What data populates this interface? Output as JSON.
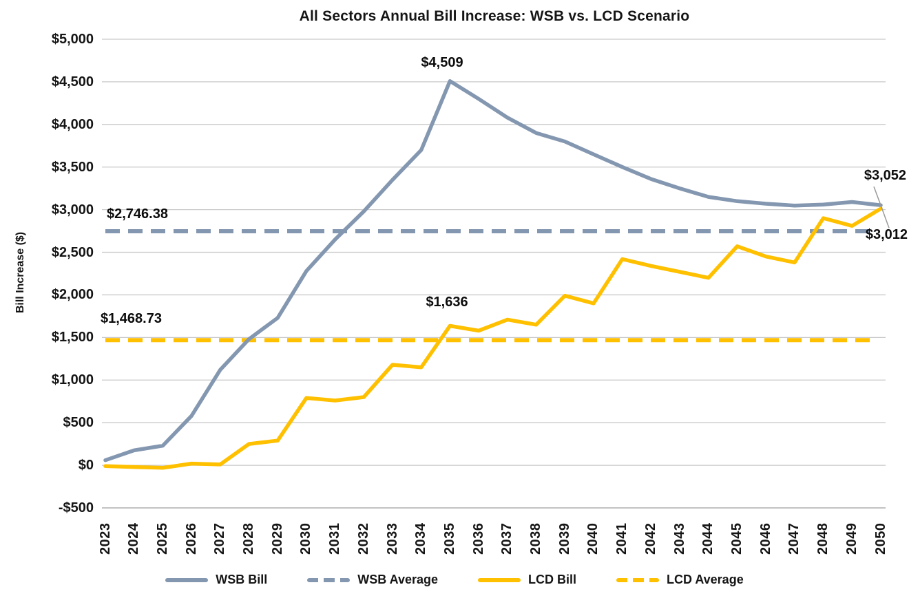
{
  "chart_data": {
    "type": "line",
    "title": "All Sectors Annual Bill Increase: WSB vs. LCD Scenario",
    "ylabel": "Bill Increase ($)",
    "xlabel": "",
    "ylim": [
      -500,
      5000
    ],
    "grid": "horizontal-only",
    "legend_position": "bottom",
    "categories": [
      "2023",
      "2024",
      "2025",
      "2026",
      "2027",
      "2028",
      "2029",
      "2030",
      "2031",
      "2032",
      "2033",
      "2034",
      "2035",
      "2036",
      "2037",
      "2038",
      "2039",
      "2040",
      "2041",
      "2042",
      "2043",
      "2044",
      "2045",
      "2046",
      "2047",
      "2048",
      "2049",
      "2050"
    ],
    "series": [
      {
        "name": "WSB Bill",
        "style": "solid",
        "color": "#8497B0",
        "values": [
          60,
          175,
          230,
          580,
          1120,
          1480,
          1730,
          2280,
          2650,
          2980,
          3350,
          3700,
          4509,
          4300,
          4080,
          3900,
          3800,
          3650,
          3500,
          3360,
          3250,
          3150,
          3100,
          3070,
          3048,
          3060,
          3090,
          3052
        ]
      },
      {
        "name": "LCD Bill",
        "style": "solid",
        "color": "#FFC000",
        "values": [
          -10,
          -20,
          -30,
          20,
          10,
          250,
          290,
          790,
          760,
          800,
          1180,
          1150,
          1636,
          1580,
          1710,
          1650,
          1990,
          1900,
          2420,
          2340,
          2270,
          2200,
          2570,
          2450,
          2380,
          2900,
          2810,
          3012
        ]
      }
    ],
    "average_lines": [
      {
        "name": "WSB Average",
        "style": "dashed",
        "color": "#8497B0",
        "value": 2746.38
      },
      {
        "name": "LCD Average",
        "style": "dashed",
        "color": "#FFC000",
        "value": 1468.73
      }
    ],
    "y_ticks": [
      {
        "value": 5000,
        "label": "$5,000"
      },
      {
        "value": 4500,
        "label": "$4,500"
      },
      {
        "value": 4000,
        "label": "$4,000"
      },
      {
        "value": 3500,
        "label": "$3,500"
      },
      {
        "value": 3000,
        "label": "$3,000"
      },
      {
        "value": 2500,
        "label": "$2,500"
      },
      {
        "value": 2000,
        "label": "$2,000"
      },
      {
        "value": 1500,
        "label": "$1,500"
      },
      {
        "value": 1000,
        "label": "$1,000"
      },
      {
        "value": 500,
        "label": "$500"
      },
      {
        "value": 0,
        "label": "$0"
      },
      {
        "value": -500,
        "label": "-$500"
      }
    ],
    "annotations": [
      {
        "id": "wsb-peak",
        "text": "$4,509",
        "series": "WSB Bill",
        "year": "2035",
        "value": 4509
      },
      {
        "id": "lcd-2035",
        "text": "$1,636",
        "series": "LCD Bill",
        "year": "2035",
        "value": 1636
      },
      {
        "id": "wsb-avg",
        "text": "$2,746.38",
        "series": "WSB Average",
        "value": 2746.38
      },
      {
        "id": "lcd-avg",
        "text": "$1,468.73",
        "series": "LCD Average",
        "value": 1468.73
      },
      {
        "id": "wsb-end",
        "text": "$3,052",
        "series": "WSB Bill",
        "year": "2050",
        "value": 3052
      },
      {
        "id": "lcd-end",
        "text": "$3,012",
        "series": "LCD Bill",
        "year": "2050",
        "value": 3012
      }
    ],
    "legend": [
      {
        "label": "WSB Bill",
        "dashed": false,
        "color": "#8497B0"
      },
      {
        "label": "WSB Average",
        "dashed": true,
        "color": "#8497B0"
      },
      {
        "label": "LCD Bill",
        "dashed": false,
        "color": "#FFC000"
      },
      {
        "label": "LCD Average",
        "dashed": true,
        "color": "#FFC000"
      }
    ],
    "colors": {
      "wsb": "#8497B0",
      "lcd": "#FFC000",
      "gridline": "#C9C9C9",
      "axis_line": "#ADADAD",
      "leader_line": "#999999",
      "text": "#151515"
    }
  }
}
